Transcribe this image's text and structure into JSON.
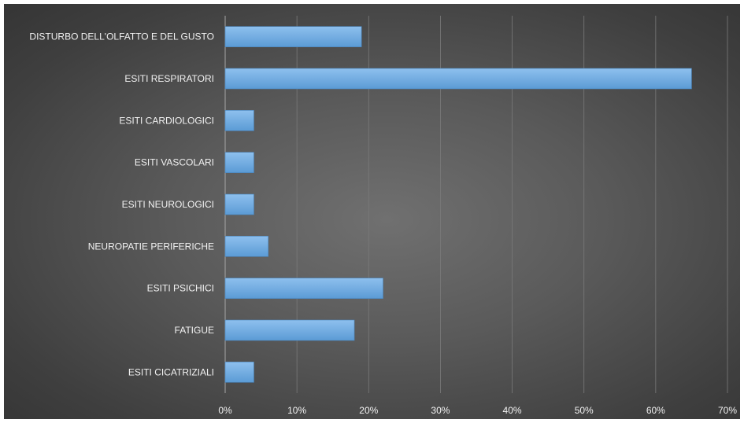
{
  "chart_data": {
    "type": "bar",
    "orientation": "horizontal",
    "title": "",
    "xlabel": "",
    "ylabel": "",
    "categories": [
      "DISTURBO DELL'OLFATTO E DEL GUSTO",
      "ESITI RESPIRATORI",
      "ESITI CARDIOLOGICI",
      "ESITI VASCOLARI",
      "ESITI NEUROLOGICI",
      "NEUROPATIE PERIFERICHE",
      "ESITI PSICHICI",
      "FATIGUE",
      "ESITI CICATRIZIALI"
    ],
    "values": [
      0.19,
      0.65,
      0.04,
      0.04,
      0.04,
      0.06,
      0.22,
      0.18,
      0.04
    ],
    "xlim": [
      0,
      0.7
    ],
    "x_ticks": [
      0,
      0.1,
      0.2,
      0.3,
      0.4,
      0.5,
      0.6,
      0.7
    ],
    "x_tick_labels": [
      "0%",
      "10%",
      "20%",
      "30%",
      "40%",
      "50%",
      "60%",
      "70%"
    ],
    "grid": true,
    "legend": "none",
    "colors": {
      "bar": "#5b9bd5",
      "bar_light": "#8ec0ee",
      "background_center": "#707070",
      "background_edge": "#353535",
      "text": "#f2f2f2",
      "gridline": "#7a7a7a"
    }
  }
}
